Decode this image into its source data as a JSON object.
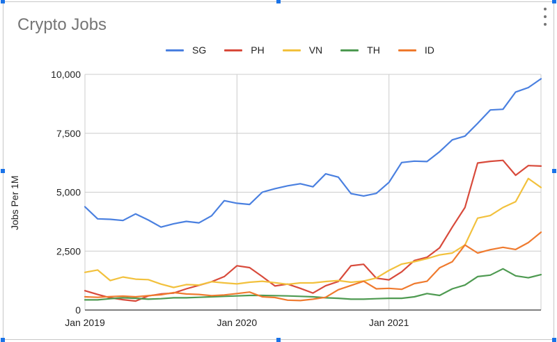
{
  "chart_data": {
    "type": "line",
    "title": "Crypto Jobs",
    "ylabel": "Jobs Per 1M",
    "xlabel": "",
    "ylim": [
      0,
      10000
    ],
    "yticks": [
      0,
      2500,
      5000,
      7500,
      10000
    ],
    "ytick_labels": [
      "0",
      "2,500",
      "5,000",
      "7,500",
      "10,000"
    ],
    "xtick_labels": [
      "Jan  2019",
      "Jan  2020",
      "Jan  2021"
    ],
    "xtick_months": [
      0,
      12,
      24
    ],
    "grid": true,
    "legend_position": "top",
    "months": 36,
    "series": [
      {
        "name": "SG",
        "color": "#4a80e0",
        "values": [
          4380,
          3870,
          3850,
          3800,
          4080,
          3820,
          3520,
          3660,
          3760,
          3700,
          4000,
          4640,
          4530,
          4480,
          5000,
          5150,
          5270,
          5360,
          5230,
          5780,
          5640,
          4940,
          4840,
          4950,
          5420,
          6260,
          6320,
          6300,
          6720,
          7220,
          7380,
          7920,
          8490,
          8520,
          9250,
          9440,
          9810
        ]
      },
      {
        "name": "PH",
        "color": "#d84a3b",
        "values": [
          820,
          660,
          520,
          440,
          380,
          600,
          680,
          720,
          900,
          1050,
          1200,
          1420,
          1880,
          1800,
          1420,
          1020,
          1100,
          920,
          720,
          1030,
          1210,
          1880,
          1940,
          1350,
          1280,
          1620,
          2100,
          2240,
          2640,
          3520,
          4350,
          6240,
          6310,
          6350,
          5720,
          6130,
          6110
        ]
      },
      {
        "name": "VN",
        "color": "#f2c13d",
        "values": [
          1600,
          1700,
          1250,
          1400,
          1310,
          1290,
          1100,
          960,
          1080,
          1060,
          1200,
          1150,
          1110,
          1180,
          1220,
          1160,
          1090,
          1150,
          1150,
          1210,
          1250,
          1180,
          1230,
          1360,
          1680,
          1950,
          2050,
          2180,
          2340,
          2420,
          2760,
          3900,
          4010,
          4350,
          4600,
          5580,
          5200
        ]
      },
      {
        "name": "TH",
        "color": "#4e9a51",
        "values": [
          430,
          430,
          480,
          520,
          500,
          460,
          480,
          520,
          520,
          540,
          560,
          580,
          600,
          620,
          620,
          610,
          600,
          580,
          560,
          520,
          500,
          460,
          460,
          480,
          500,
          500,
          560,
          700,
          620,
          900,
          1060,
          1420,
          1480,
          1750,
          1450,
          1370,
          1500
        ]
      },
      {
        "name": "ID",
        "color": "#ef7a2e",
        "values": [
          560,
          540,
          570,
          590,
          560,
          610,
          650,
          740,
          680,
          660,
          610,
          640,
          700,
          760,
          560,
          530,
          420,
          400,
          460,
          540,
          860,
          1040,
          1220,
          900,
          920,
          880,
          1120,
          1220,
          1790,
          2050,
          2760,
          2420,
          2560,
          2660,
          2570,
          2860,
          3300
        ]
      }
    ]
  }
}
